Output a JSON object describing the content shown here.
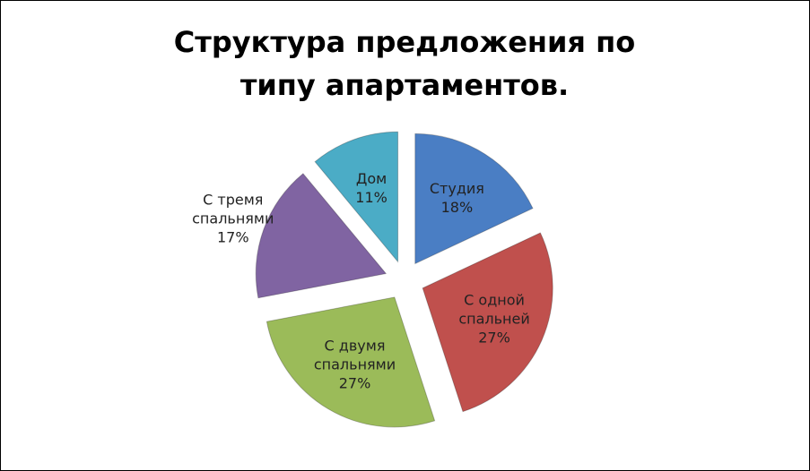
{
  "chart_data": {
    "type": "pie",
    "title": "Структура предложения по типу апартаментов.",
    "categories": [
      "Студия",
      "С одной спальней",
      "С двумя спальнями",
      "С тремя спальнями",
      "Дом"
    ],
    "values": [
      18,
      27,
      27,
      17,
      11
    ],
    "value_labels": [
      "18%",
      "27%",
      "27%",
      "17%",
      "11%"
    ],
    "colors": [
      "#4a7ec4",
      "#c0504d",
      "#9bbb59",
      "#8064a2",
      "#4bacc6"
    ]
  }
}
